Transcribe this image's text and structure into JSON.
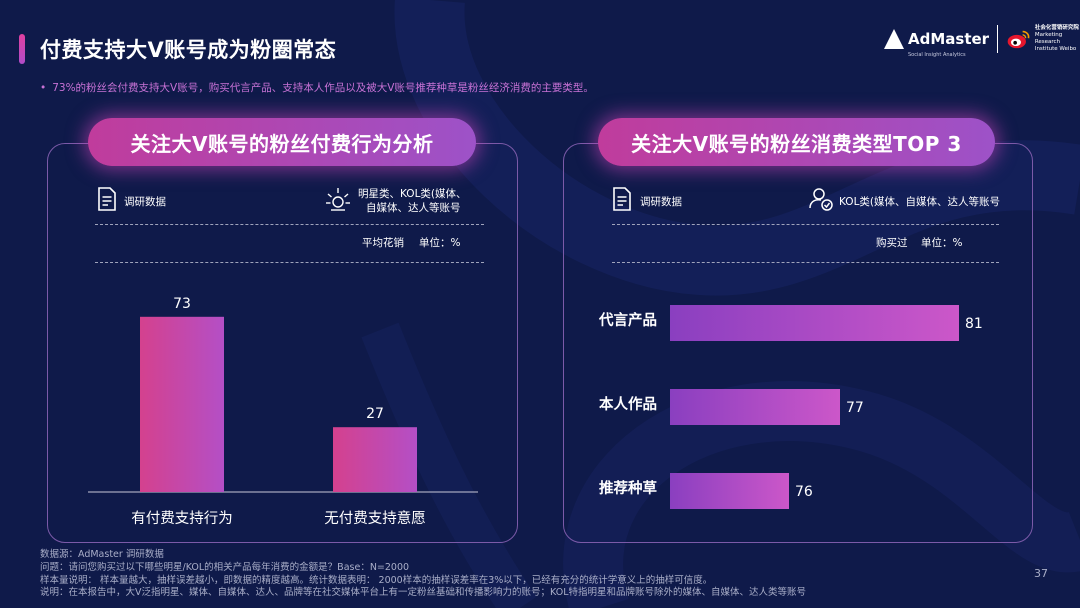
{
  "page": {
    "title": "付费支持大V账号成为粉圈常态",
    "subtitle": "73%的粉丝会付费支持大V账号，购买代言产品、支持本人作品以及被大V账号推荐种草是粉丝经济消费的主要类型。",
    "page_number": "37"
  },
  "logos": {
    "admaster": "AdMaster",
    "admaster_sub": "Social Insight Analytics",
    "weibo_line1": "社会化营销研究院",
    "weibo_line2": "Marketing Research",
    "weibo_line3": "Institute Weibo"
  },
  "left_panel": {
    "heading": "关注大V账号的粉丝付费行为分析",
    "source_label": "调研数据",
    "audience_label_1": "明星类、KOL类(媒体、",
    "audience_label_2": "自媒体、达人等账号",
    "metric_label": "平均花销",
    "unit_label": "单位：%"
  },
  "right_panel": {
    "heading": "关注大V账号的粉丝消费类型TOP 3",
    "source_label": "调研数据",
    "audience_label": "KOL类(媒体、自媒体、达人等账号",
    "metric_label": "购买过",
    "unit_label": "单位：%"
  },
  "chart_data": [
    {
      "type": "bar",
      "orientation": "vertical",
      "categories": [
        "有付费支持行为",
        "无付费支持意愿"
      ],
      "values": [
        73,
        27
      ],
      "ylim": [
        0,
        80
      ],
      "title": "关注大V账号的粉丝付费行为分析",
      "xlabel": "",
      "ylabel": "",
      "grid": false,
      "colors": [
        "#d4418e",
        "#b44fc6"
      ]
    },
    {
      "type": "bar",
      "orientation": "horizontal",
      "categories": [
        "代言产品",
        "本人作品",
        "推荐种草"
      ],
      "values": [
        81,
        77,
        76
      ],
      "title": "关注大V账号的粉丝消费类型TOP 3",
      "xlabel": "",
      "ylabel": "",
      "grid": false,
      "colors": [
        "#8a3fc0",
        "#cc57c9"
      ]
    }
  ],
  "footnotes": {
    "line1": "数据源：AdMaster 调研数据",
    "line2": "问题：请问您购买过以下哪些明星/KOL的相关产品每年消费的金额是？Base：N=2000",
    "line3": "样本量说明：  样本量越大，抽样误差越小，即数据的精度越高。统计数据表明：  2000样本的抽样误差率在3%以下，已经有充分的统计学意义上的抽样可信度。",
    "line4": "说明：在本报告中，大V泛指明星、媒体、自媒体、达人、品牌等在社交媒体平台上有一定粉丝基础和传播影响力的账号；KOL特指明星和品牌账号除外的媒体、自媒体、达人类等账号"
  },
  "colors": {
    "background": "#0f1a4a",
    "accent_pink": "#d4418e",
    "accent_purple": "#b44fc6",
    "subtitle": "#c872d6"
  }
}
